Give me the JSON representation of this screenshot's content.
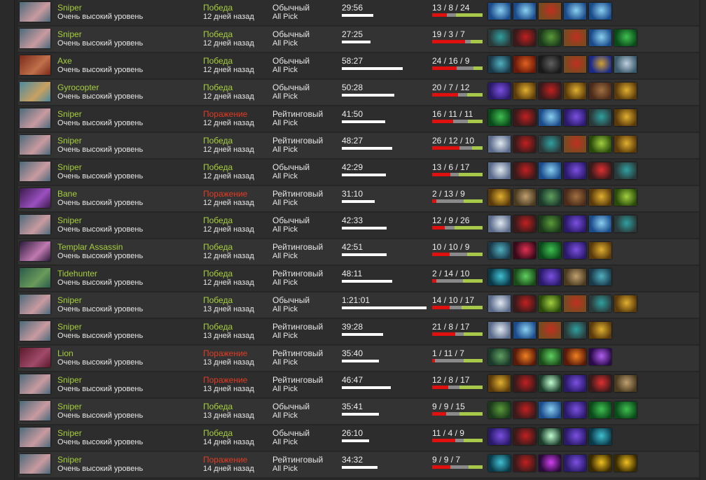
{
  "colors": {
    "win": "#a6cf3e",
    "loss": "#e23b24",
    "kills": "#e0100e",
    "deaths": "#8a8a8a",
    "assists": "#a8c84a"
  },
  "skill_label": "Очень высокий уровень",
  "heroes": {
    "Sniper": [
      "#4a6a7a",
      "#c89aa0"
    ],
    "Axe": [
      "#7a2a1a",
      "#c0704a"
    ],
    "Gyrocopter": [
      "#4a8aa0",
      "#c8a060"
    ],
    "Bane": [
      "#3a1a4a",
      "#9a50c0"
    ],
    "Templar Assassin": [
      "#2a1a3a",
      "#c07ab0"
    ],
    "Tidehunter": [
      "#2a5a4a",
      "#6a9a5a"
    ],
    "Lion": [
      "#5a1a2a",
      "#a04a6a"
    ]
  },
  "items": {
    "mjollnir": [
      "#1a4a8a",
      "#8ad0f0"
    ],
    "treads": [
      "#7a4a20",
      "#c03020"
    ],
    "skadi": [
      "#2a3a3a",
      "#30a0a0"
    ],
    "satanic": [
      "#3a1a1a",
      "#c02020"
    ],
    "hood": [
      "#1a3a1a",
      "#5a9a3a"
    ],
    "butterfly": [
      "#0a4a1a",
      "#40c050"
    ],
    "blink": [
      "#1a3a4a",
      "#50b0c0"
    ],
    "radiance": [
      "#6a1a0a",
      "#e06020"
    ],
    "dark": [
      "#1a1a1a",
      "#606060"
    ],
    "scepter": [
      "#1a2a8a",
      "#d0a030"
    ],
    "wolf": [
      "#3a5a6a",
      "#c0d0e0"
    ],
    "purple": [
      "#2a1a6a",
      "#7a50e0"
    ],
    "gold": [
      "#5a3a0a",
      "#e0b030"
    ],
    "boots": [
      "#4a2a1a",
      "#a07040"
    ],
    "moon": [
      "#5a6a8a",
      "#e0e8f0"
    ],
    "green": [
      "#2a4a0a",
      "#a0d040"
    ],
    "redsword": [
      "#3a1a1a",
      "#e03030"
    ],
    "scroll": [
      "#4a3a20",
      "#c0a070"
    ],
    "stick": [
      "#1a3a2a",
      "#60a060"
    ],
    "crescent": [
      "#3a0a1a",
      "#e03050"
    ],
    "swirl": [
      "#1a4a1a",
      "#60d060"
    ],
    "orange": [
      "#5a1a0a",
      "#f08020"
    ],
    "orb": [
      "#2a0a4a",
      "#b060f0"
    ],
    "light": [
      "#1a3a2a",
      "#c0ffd0"
    ],
    "teal": [
      "#0a3a4a",
      "#40c0d0"
    ],
    "cross": [
      "#2a0a3a",
      "#d040f0"
    ],
    "solar": [
      "#3a2a00",
      "#f0c020"
    ]
  },
  "matches": [
    {
      "hero": "Sniper",
      "result": "Победа",
      "win": true,
      "date": "12 дней назад",
      "mode": "Обычный",
      "lobby": "All Pick",
      "duration": "29:56",
      "minutes": 29.9,
      "k": 13,
      "d": 8,
      "a": 24,
      "items": [
        "mjollnir",
        "mjollnir",
        "treads",
        "mjollnir",
        "mjollnir"
      ]
    },
    {
      "hero": "Sniper",
      "result": "Победа",
      "win": true,
      "date": "12 дней назад",
      "mode": "Обычный",
      "lobby": "All Pick",
      "duration": "27:25",
      "minutes": 27.4,
      "k": 19,
      "d": 3,
      "a": 7,
      "items": [
        "skadi",
        "satanic",
        "hood",
        "treads",
        "mjollnir",
        "butterfly"
      ]
    },
    {
      "hero": "Axe",
      "result": "Победа",
      "win": true,
      "date": "12 дней назад",
      "mode": "Обычный",
      "lobby": "All Pick",
      "duration": "58:27",
      "minutes": 58.5,
      "k": 24,
      "d": 16,
      "a": 9,
      "items": [
        "blink",
        "radiance",
        "dark",
        "treads",
        "scepter",
        "wolf"
      ]
    },
    {
      "hero": "Gyrocopter",
      "result": "Победа",
      "win": true,
      "date": "12 дней назад",
      "mode": "Обычный",
      "lobby": "All Pick",
      "duration": "50:28",
      "minutes": 50.5,
      "k": 20,
      "d": 7,
      "a": 12,
      "items": [
        "purple",
        "gold",
        "satanic",
        "gold",
        "boots",
        "gold"
      ]
    },
    {
      "hero": "Sniper",
      "result": "Поражение",
      "win": false,
      "date": "12 дней назад",
      "mode": "Рейтинговый",
      "lobby": "All Pick",
      "duration": "41:50",
      "minutes": 41.8,
      "k": 16,
      "d": 11,
      "a": 11,
      "items": [
        "butterfly",
        "satanic",
        "mjollnir",
        "purple",
        "skadi",
        "gold"
      ]
    },
    {
      "hero": "Sniper",
      "result": "Победа",
      "win": true,
      "date": "12 дней назад",
      "mode": "Рейтинговый",
      "lobby": "All Pick",
      "duration": "48:27",
      "minutes": 48.5,
      "k": 26,
      "d": 12,
      "a": 10,
      "items": [
        "moon",
        "satanic",
        "skadi",
        "treads",
        "green",
        "gold"
      ]
    },
    {
      "hero": "Sniper",
      "result": "Победа",
      "win": true,
      "date": "12 дней назад",
      "mode": "Обычный",
      "lobby": "All Pick",
      "duration": "42:29",
      "minutes": 42.5,
      "k": 13,
      "d": 6,
      "a": 17,
      "items": [
        "moon",
        "satanic",
        "mjollnir",
        "purple",
        "redsword",
        "skadi"
      ]
    },
    {
      "hero": "Bane",
      "result": "Поражение",
      "win": false,
      "date": "12 дней назад",
      "mode": "Рейтинговый",
      "lobby": "All Pick",
      "duration": "31:10",
      "minutes": 31.2,
      "k": 2,
      "d": 13,
      "a": 9,
      "items": [
        "gold",
        "scroll",
        "stick",
        "boots",
        "gold",
        "green"
      ]
    },
    {
      "hero": "Sniper",
      "result": "Победа",
      "win": true,
      "date": "12 дней назад",
      "mode": "Обычный",
      "lobby": "All Pick",
      "duration": "42:33",
      "minutes": 42.6,
      "k": 12,
      "d": 9,
      "a": 26,
      "items": [
        "moon",
        "satanic",
        "hood",
        "purple",
        "mjollnir",
        "skadi"
      ]
    },
    {
      "hero": "Templar Assassin",
      "result": "Победа",
      "win": true,
      "date": "12 дней назад",
      "mode": "Рейтинговый",
      "lobby": "All Pick",
      "duration": "42:51",
      "minutes": 42.9,
      "k": 10,
      "d": 10,
      "a": 9,
      "items": [
        "blink",
        "crescent",
        "butterfly",
        "purple",
        "gold"
      ]
    },
    {
      "hero": "Tidehunter",
      "result": "Победа",
      "win": true,
      "date": "12 дней назад",
      "mode": "Рейтинговый",
      "lobby": "All Pick",
      "duration": "48:11",
      "minutes": 48.2,
      "k": 2,
      "d": 14,
      "a": 10,
      "items": [
        "teal",
        "swirl",
        "purple",
        "scroll",
        "blink"
      ]
    },
    {
      "hero": "Sniper",
      "result": "Победа",
      "win": true,
      "date": "13 дней назад",
      "mode": "Обычный",
      "lobby": "All Pick",
      "duration": "1:21:01",
      "minutes": 81,
      "k": 14,
      "d": 10,
      "a": 17,
      "items": [
        "moon",
        "satanic",
        "green",
        "treads",
        "skadi",
        "gold"
      ]
    },
    {
      "hero": "Sniper",
      "result": "Победа",
      "win": true,
      "date": "13 дней назад",
      "mode": "Рейтинговый",
      "lobby": "All Pick",
      "duration": "39:28",
      "minutes": 39.5,
      "k": 21,
      "d": 8,
      "a": 17,
      "items": [
        "moon",
        "mjollnir",
        "treads",
        "skadi",
        "gold"
      ]
    },
    {
      "hero": "Lion",
      "result": "Поражение",
      "win": false,
      "date": "13 дней назад",
      "mode": "Рейтинговый",
      "lobby": "All Pick",
      "duration": "35:40",
      "minutes": 35.7,
      "k": 1,
      "d": 11,
      "a": 7,
      "items": [
        "stick",
        "orange",
        "swirl",
        "orange",
        "orb"
      ]
    },
    {
      "hero": "Sniper",
      "result": "Поражение",
      "win": false,
      "date": "13 дней назад",
      "mode": "Рейтинговый",
      "lobby": "All Pick",
      "duration": "46:47",
      "minutes": 46.8,
      "k": 12,
      "d": 8,
      "a": 17,
      "items": [
        "gold",
        "satanic",
        "light",
        "purple",
        "redsword",
        "scroll"
      ]
    },
    {
      "hero": "Sniper",
      "result": "Победа",
      "win": true,
      "date": "13 дней назад",
      "mode": "Обычный",
      "lobby": "All Pick",
      "duration": "35:41",
      "minutes": 35.7,
      "k": 9,
      "d": 9,
      "a": 15,
      "items": [
        "hood",
        "satanic",
        "mjollnir",
        "purple",
        "butterfly",
        "butterfly"
      ]
    },
    {
      "hero": "Sniper",
      "result": "Победа",
      "win": true,
      "date": "14 дней назад",
      "mode": "Обычный",
      "lobby": "All Pick",
      "duration": "26:10",
      "minutes": 26.2,
      "k": 11,
      "d": 4,
      "a": 9,
      "items": [
        "purple",
        "satanic",
        "light",
        "purple",
        "teal"
      ]
    },
    {
      "hero": "Sniper",
      "result": "Поражение",
      "win": false,
      "date": "14 дней назад",
      "mode": "Рейтинговый",
      "lobby": "All Pick",
      "duration": "34:32",
      "minutes": 34.5,
      "k": 9,
      "d": 9,
      "a": 7,
      "items": [
        "teal",
        "satanic",
        "cross",
        "purple",
        "solar",
        "solar"
      ]
    }
  ]
}
